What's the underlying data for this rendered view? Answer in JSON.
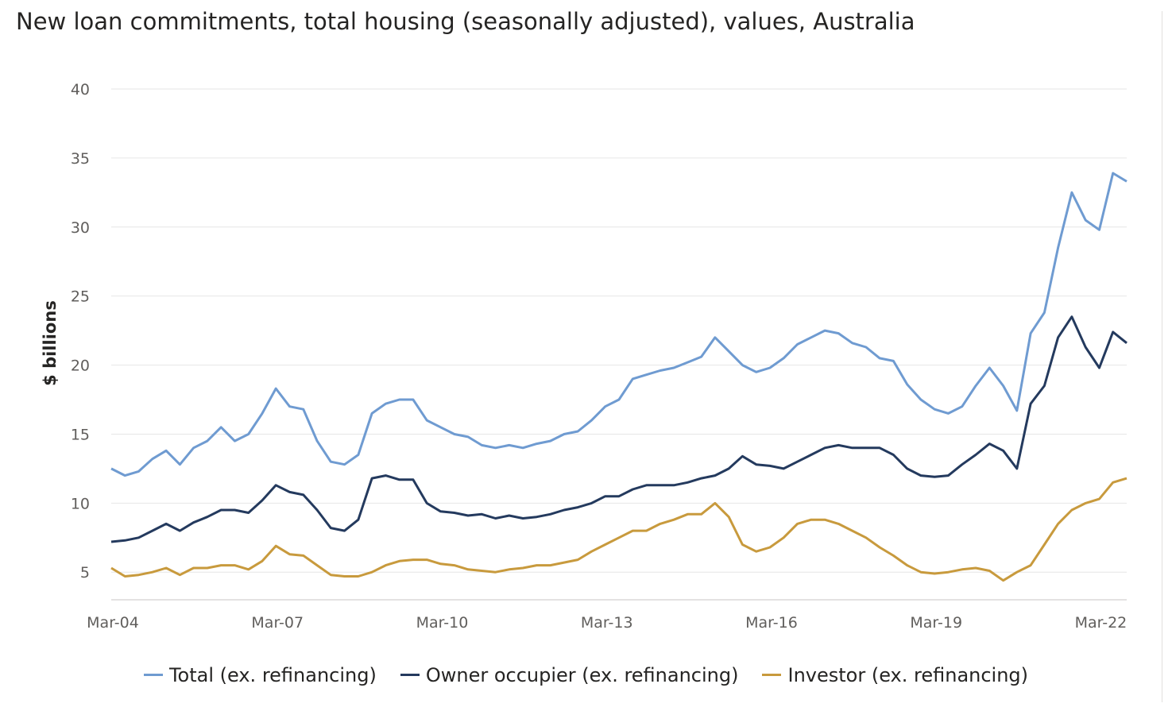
{
  "chart_data": {
    "type": "line",
    "title": "New loan commitments, total housing (seasonally adjusted), values, Australia",
    "xlabel": "",
    "ylabel": "$ billions",
    "ylim": [
      3,
      40
    ],
    "yticks": [
      5,
      10,
      15,
      20,
      25,
      30,
      35,
      40
    ],
    "xlim": [
      "Mar-04",
      "Sep-22"
    ],
    "xticks": [
      "Mar-04",
      "Mar-07",
      "Mar-10",
      "Mar-13",
      "Mar-16",
      "Mar-19",
      "Mar-22"
    ],
    "grid": "horizontal",
    "legend_position": "bottom",
    "frequency": "quarterly (approximate readings of monthly series)",
    "x": [
      "Mar-04",
      "Jun-04",
      "Sep-04",
      "Dec-04",
      "Mar-05",
      "Jun-05",
      "Sep-05",
      "Dec-05",
      "Mar-06",
      "Jun-06",
      "Sep-06",
      "Dec-06",
      "Mar-07",
      "Jun-07",
      "Sep-07",
      "Dec-07",
      "Mar-08",
      "Jun-08",
      "Sep-08",
      "Dec-08",
      "Mar-09",
      "Jun-09",
      "Sep-09",
      "Dec-09",
      "Mar-10",
      "Jun-10",
      "Sep-10",
      "Dec-10",
      "Mar-11",
      "Jun-11",
      "Sep-11",
      "Dec-11",
      "Mar-12",
      "Jun-12",
      "Sep-12",
      "Dec-12",
      "Mar-13",
      "Jun-13",
      "Sep-13",
      "Dec-13",
      "Mar-14",
      "Jun-14",
      "Sep-14",
      "Dec-14",
      "Mar-15",
      "Jun-15",
      "Sep-15",
      "Dec-15",
      "Mar-16",
      "Jun-16",
      "Sep-16",
      "Dec-16",
      "Mar-17",
      "Jun-17",
      "Sep-17",
      "Dec-17",
      "Mar-18",
      "Jun-18",
      "Sep-18",
      "Dec-18",
      "Mar-19",
      "Jun-19",
      "Sep-19",
      "Dec-19",
      "Mar-20",
      "Jun-20",
      "Sep-20",
      "Dec-20",
      "Mar-21",
      "Jun-21",
      "Sep-21",
      "Dec-21",
      "Mar-22",
      "Jun-22",
      "Sep-22"
    ],
    "series": [
      {
        "name": "Total (ex. refinancing)",
        "color": "#6f9bd1",
        "values": [
          12.5,
          12.0,
          12.3,
          13.2,
          13.8,
          12.8,
          14.0,
          14.5,
          15.5,
          14.5,
          15.0,
          16.5,
          18.3,
          17.0,
          16.8,
          14.5,
          13.0,
          12.8,
          13.5,
          16.5,
          17.2,
          17.5,
          17.5,
          16.0,
          15.5,
          15.0,
          14.8,
          14.2,
          14.0,
          14.2,
          14.0,
          14.3,
          14.5,
          15.0,
          15.2,
          16.0,
          17.0,
          17.5,
          19.0,
          19.3,
          19.6,
          19.8,
          20.2,
          20.6,
          22.0,
          21.0,
          20.0,
          19.5,
          19.8,
          20.5,
          21.5,
          22.0,
          22.5,
          22.3,
          21.6,
          21.3,
          20.5,
          20.3,
          18.6,
          17.5,
          16.8,
          16.5,
          17.0,
          18.5,
          19.8,
          18.5,
          16.7,
          22.3,
          23.8,
          28.5,
          32.5,
          30.5,
          29.8,
          33.9,
          33.3
        ]
      },
      {
        "name": "Owner occupier (ex. refinancing)",
        "color": "#243a5e",
        "values": [
          7.2,
          7.3,
          7.5,
          8.0,
          8.5,
          8.0,
          8.6,
          9.0,
          9.5,
          9.5,
          9.3,
          10.2,
          11.3,
          10.8,
          10.6,
          9.5,
          8.2,
          8.0,
          8.8,
          11.8,
          12.0,
          11.7,
          11.7,
          10.0,
          9.4,
          9.3,
          9.1,
          9.2,
          8.9,
          9.1,
          8.9,
          9.0,
          9.2,
          9.5,
          9.7,
          10.0,
          10.5,
          10.5,
          11.0,
          11.3,
          11.3,
          11.3,
          11.5,
          11.8,
          12.0,
          12.5,
          13.4,
          12.8,
          12.7,
          12.5,
          13.0,
          13.5,
          14.0,
          14.2,
          14.0,
          14.0,
          14.0,
          13.5,
          12.5,
          12.0,
          11.9,
          12.0,
          12.8,
          13.5,
          14.3,
          13.8,
          12.5,
          17.2,
          18.5,
          22.0,
          23.5,
          21.3,
          19.8,
          22.4,
          21.6
        ]
      },
      {
        "name": "Investor (ex. refinancing)",
        "color": "#c89a3d",
        "values": [
          5.3,
          4.7,
          4.8,
          5.0,
          5.3,
          4.8,
          5.3,
          5.3,
          5.5,
          5.5,
          5.2,
          5.8,
          6.9,
          6.3,
          6.2,
          5.5,
          4.8,
          4.7,
          4.7,
          5.0,
          5.5,
          5.8,
          5.9,
          5.9,
          5.6,
          5.5,
          5.2,
          5.1,
          5.0,
          5.2,
          5.3,
          5.5,
          5.5,
          5.7,
          5.9,
          6.5,
          7.0,
          7.5,
          8.0,
          8.0,
          8.5,
          8.8,
          9.2,
          9.2,
          10.0,
          9.0,
          7.0,
          6.5,
          6.8,
          7.5,
          8.5,
          8.8,
          8.8,
          8.5,
          8.0,
          7.5,
          6.8,
          6.2,
          5.5,
          5.0,
          4.9,
          5.0,
          5.2,
          5.3,
          5.1,
          4.4,
          5.0,
          5.5,
          7.0,
          8.5,
          9.5,
          10.0,
          10.3,
          11.5,
          11.8
        ]
      }
    ]
  }
}
